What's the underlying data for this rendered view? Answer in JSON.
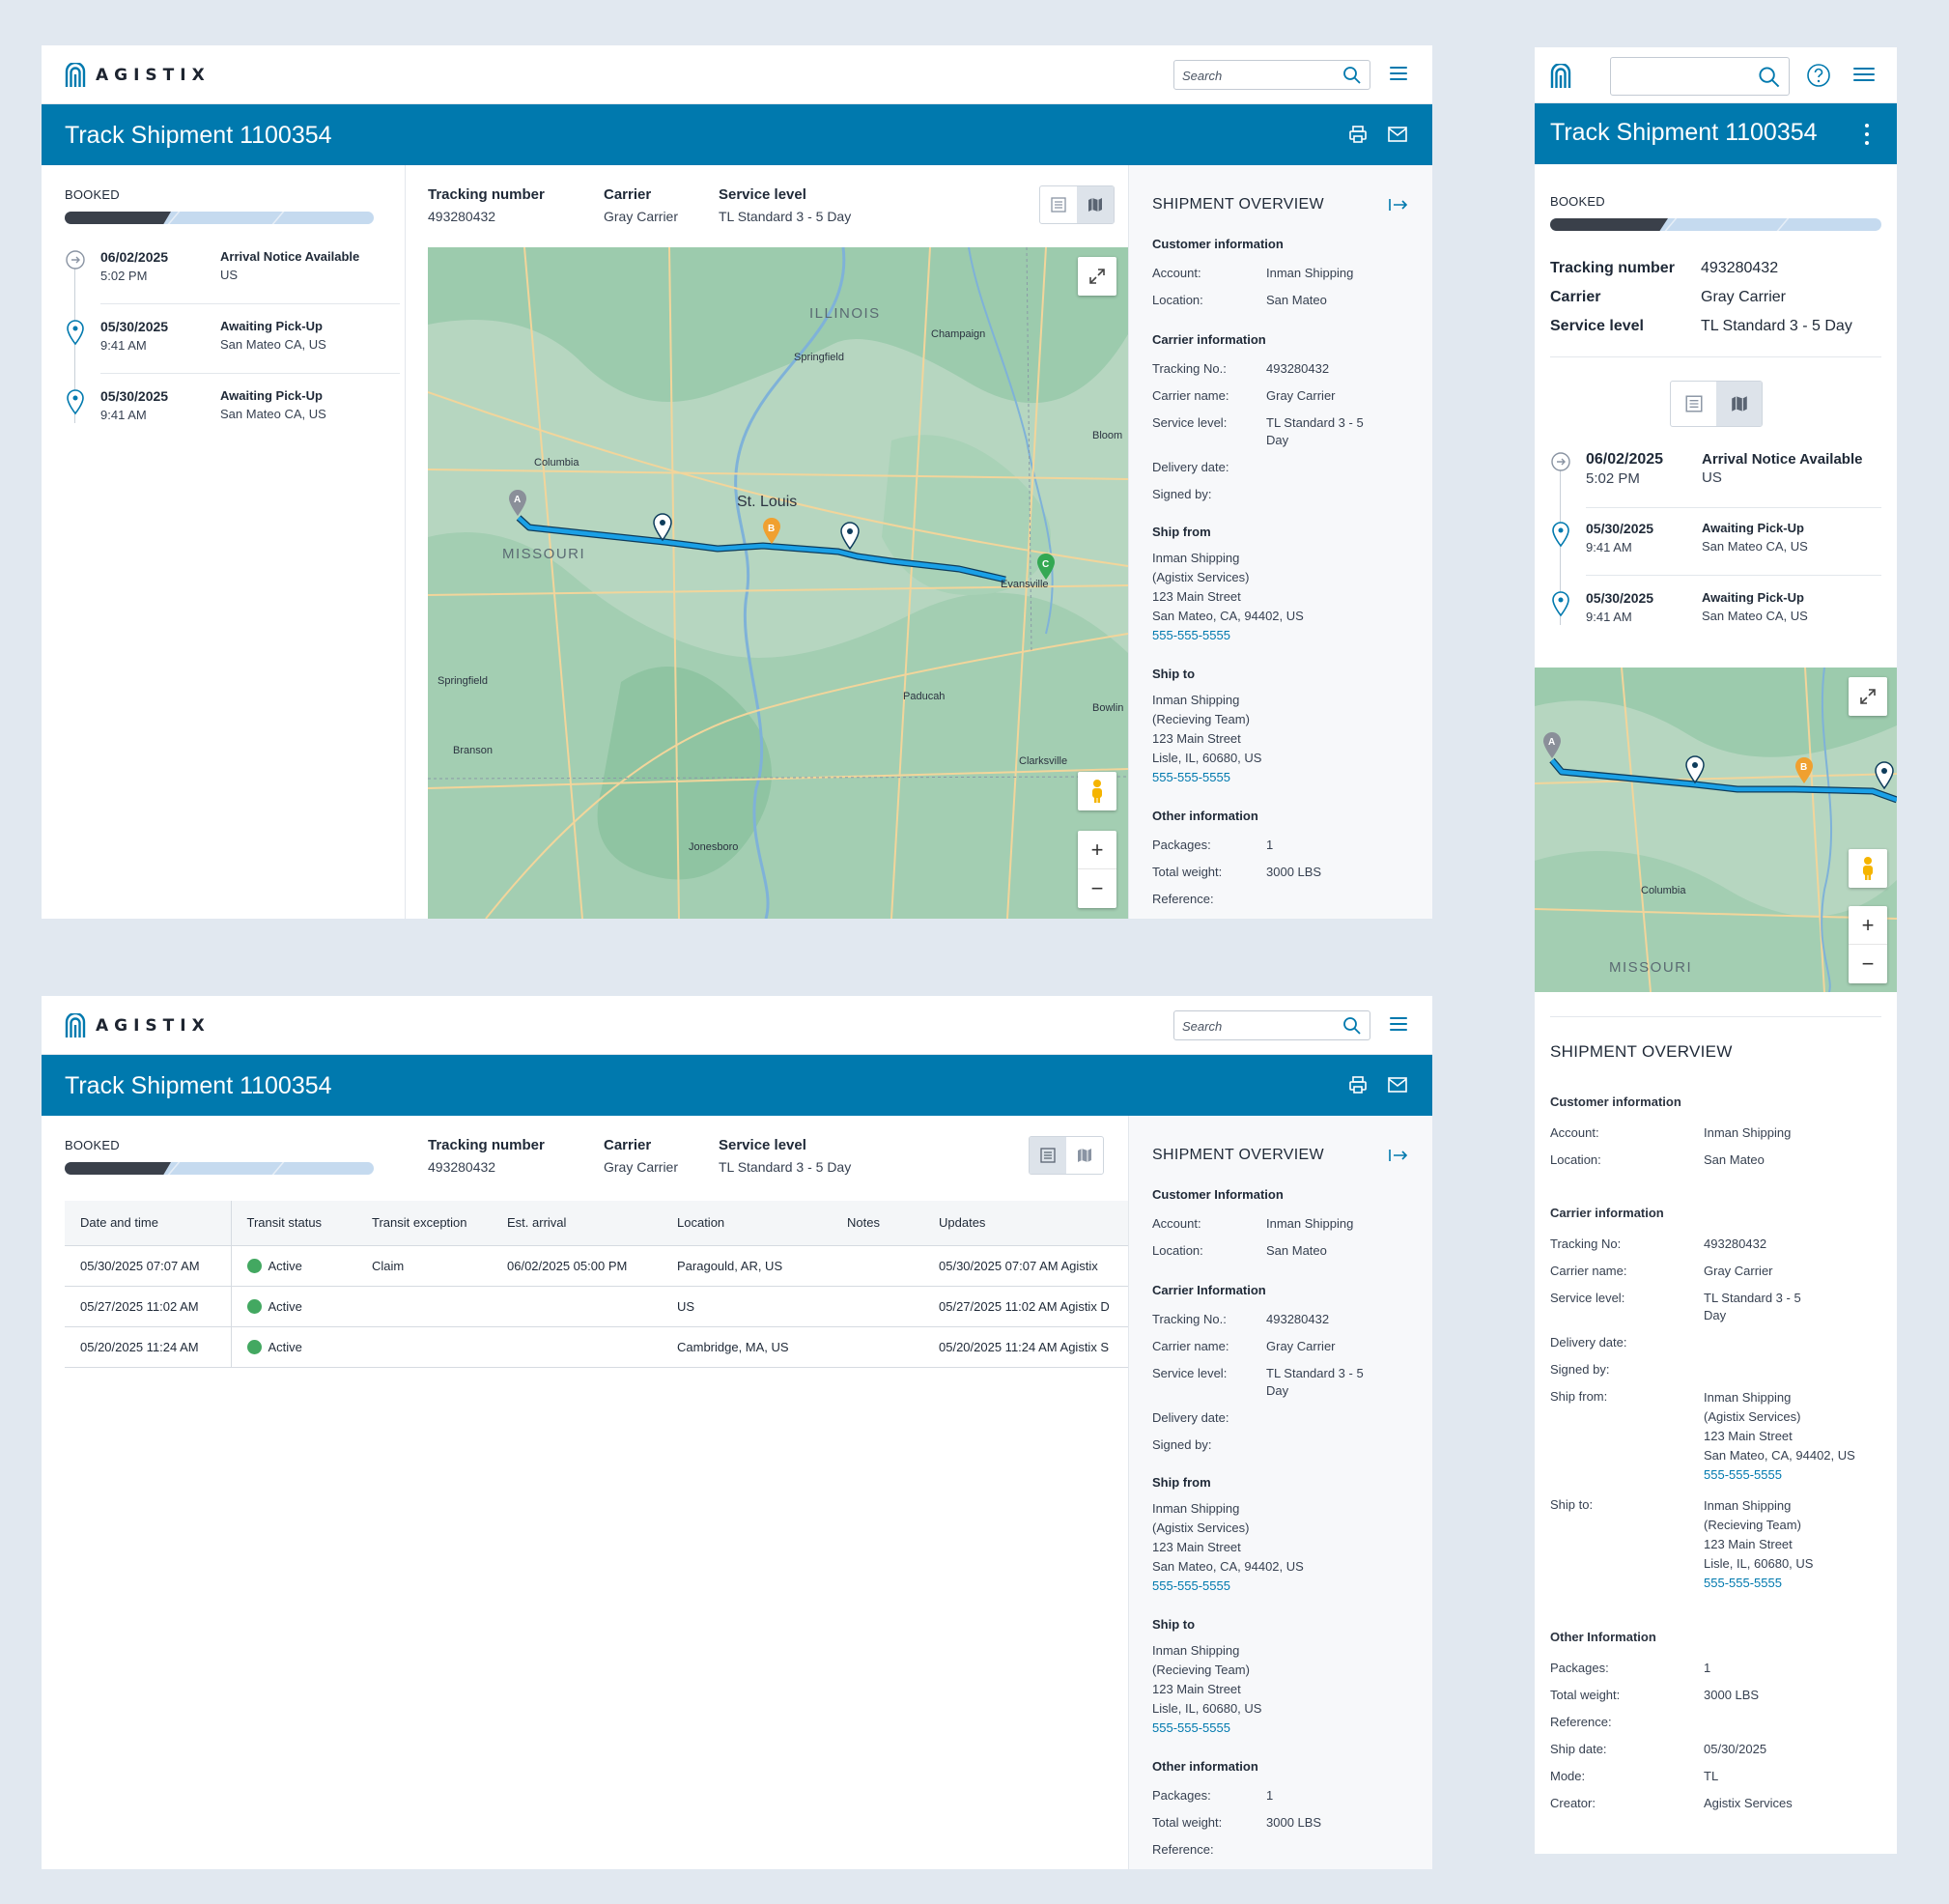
{
  "brand": {
    "name": "AGISTIX"
  },
  "search": {
    "placeholder": "Search"
  },
  "page": {
    "title": "Track Shipment 1100354"
  },
  "progress": {
    "status": "BOOKED",
    "fraction": 0.34
  },
  "tracking": {
    "tracking_label": "Tracking number",
    "tracking_value": "493280432",
    "carrier_label": "Carrier",
    "carrier_value": "Gray Carrier",
    "service_label": "Service level",
    "service_value": "TL Standard 3 - 5 Day"
  },
  "events": [
    {
      "date": "06/02/2025",
      "time": "5:02 PM",
      "status": "Arrival Notice Available",
      "location": "US",
      "icon": "arrow-circle-icon"
    },
    {
      "date": "05/30/2025",
      "time": "9:41 AM",
      "status": "Awaiting Pick-Up",
      "location": "San Mateo CA, US",
      "icon": "map-pin-icon"
    },
    {
      "date": "05/30/2025",
      "time": "9:41 AM",
      "status": "Awaiting Pick-Up",
      "location": "San Mateo CA, US",
      "icon": "map-pin-icon"
    }
  ],
  "overview": {
    "title": "SHIPMENT OVERVIEW",
    "customer_heading": "Customer information",
    "customer_heading_alt": "Customer Information",
    "account_label": "Account:",
    "account_value": "Inman Shipping",
    "location_label": "Location:",
    "location_value": "San Mateo",
    "carrier_heading": "Carrier information",
    "carrier_heading_alt": "Carrier Information",
    "tracking_no_label": "Tracking No.:",
    "tracking_no_label_m": "Tracking No:",
    "tracking_no_value": "493280432",
    "carrier_name_label": "Carrier name:",
    "carrier_name_value": "Gray Carrier",
    "service_level_label": "Service level:",
    "service_level_value_1": "TL Standard 3 - 5",
    "service_level_value_2": "Day",
    "delivery_date_label": "Delivery date:",
    "signed_by_label": "Signed by:",
    "ship_from_heading": "Ship from",
    "ship_from_label": "Ship from:",
    "ship_from_1": "Inman Shipping",
    "ship_from_2": "(Agistix Services)",
    "ship_from_3": "123 Main Street",
    "ship_from_4": "San Mateo, CA, 94402, US",
    "ship_from_phone": "555-555-5555",
    "ship_to_heading": "Ship to",
    "ship_to_label": "Ship to:",
    "ship_to_1": "Inman Shipping",
    "ship_to_2": "(Recieving Team)",
    "ship_to_3": "123 Main Street",
    "ship_to_4": "Lisle, IL, 60680, US",
    "ship_to_phone": "555-555-5555",
    "other_heading": "Other information",
    "other_heading_alt": "Other Information",
    "packages_label": "Packages:",
    "packages_value": "1",
    "weight_label": "Total weight:",
    "weight_value": "3000 LBS",
    "reference_label": "Reference:",
    "ship_date_label": "Ship date:",
    "ship_date_value": "05/30/2025",
    "mode_label": "Mode:",
    "mode_value": "TL",
    "creator_label": "Creator:",
    "creator_value": "Agistix Services"
  },
  "map": {
    "labels": {
      "illinois": "ILLINOIS",
      "missouri": "MISSOURI",
      "st_louis": "St. Louis",
      "springfield_il": "Springfield",
      "champaign": "Champaign",
      "columbia": "Columbia",
      "springfield_mo": "Springfield",
      "branson": "Branson",
      "paducah": "Paducah",
      "clarksville": "Clarksville",
      "jonesboro": "Jonesboro",
      "evansville": "Evansville",
      "bloomington": "Bloom",
      "bowling": "Bowlin"
    },
    "markers": {
      "a": "A",
      "b": "B",
      "c": "C"
    },
    "zoom_in": "+",
    "zoom_out": "−"
  },
  "table": {
    "columns": [
      "Date and time",
      "Transit status",
      "Transit exception",
      "Est. arrival",
      "Location",
      "Notes",
      "Updates"
    ],
    "rows": [
      [
        "05/30/2025 07:07 AM",
        "Active",
        "Claim",
        "06/02/2025 05:00 PM",
        "Paragould, AR, US",
        "",
        "05/30/2025 07:07 AM Agistix"
      ],
      [
        "05/27/2025 11:02 AM",
        "Active",
        "",
        "",
        "US",
        "",
        "05/27/2025 11:02 AM Agistix D"
      ],
      [
        "05/20/2025 11:24 AM",
        "Active",
        "",
        "",
        "Cambridge, MA, US",
        "",
        "05/20/2025 11:24 AM Agistix S"
      ]
    ]
  },
  "colors": {
    "brand_blue": "#0079ae",
    "active_green": "#43a861",
    "background": "#e1e8f0"
  }
}
